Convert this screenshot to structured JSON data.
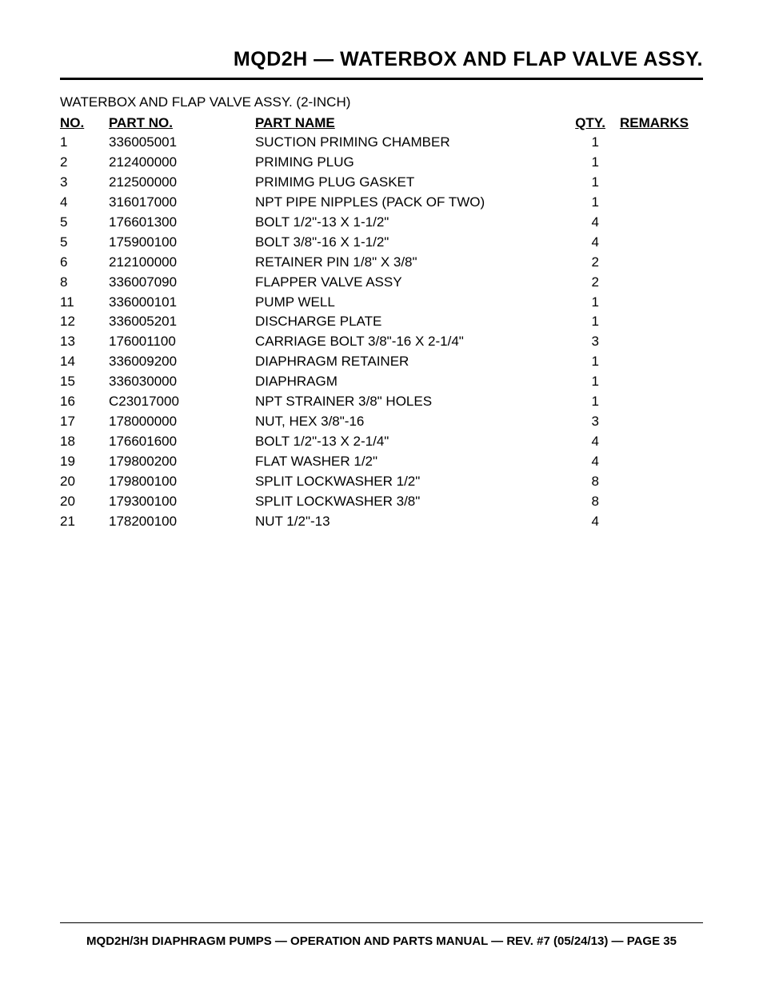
{
  "page_title": "MQD2H — WATERBOX AND FLAP VALVE ASSY.",
  "subtitle": "WATERBOX AND FLAP VALVE ASSY. (2-INCH)",
  "headers": {
    "no": "NO.",
    "partno": "PART NO.",
    "partname": "PART NAME",
    "qty": "QTY.",
    "remarks": "REMARKS"
  },
  "rows": [
    {
      "no": "1",
      "partno": "336005001",
      "partname": "SUCTION PRIMING CHAMBER",
      "qty": "1",
      "remarks": ""
    },
    {
      "no": "2",
      "partno": "212400000",
      "partname": "PRIMING PLUG",
      "qty": "1",
      "remarks": ""
    },
    {
      "no": "3",
      "partno": "212500000",
      "partname": "PRIMIMG PLUG GASKET",
      "qty": "1",
      "remarks": ""
    },
    {
      "no": "4",
      "partno": "316017000",
      "partname": "NPT PIPE NIPPLES (PACK OF TWO)",
      "qty": "1",
      "remarks": ""
    },
    {
      "no": "5",
      "partno": "176601300",
      "partname": "BOLT 1/2\"-13 X 1-1/2\"",
      "qty": "4",
      "remarks": ""
    },
    {
      "no": "5",
      "partno": "175900100",
      "partname": "BOLT 3/8\"-16 X 1-1/2\"",
      "qty": "4",
      "remarks": ""
    },
    {
      "no": "6",
      "partno": "212100000",
      "partname": "RETAINER PIN 1/8\" X 3/8\"",
      "qty": "2",
      "remarks": ""
    },
    {
      "no": "8",
      "partno": "336007090",
      "partname": "FLAPPER VALVE ASSY",
      "qty": "2",
      "remarks": ""
    },
    {
      "no": "11",
      "partno": "336000101",
      "partname": "PUMP WELL",
      "qty": "1",
      "remarks": ""
    },
    {
      "no": "12",
      "partno": "336005201",
      "partname": "DISCHARGE PLATE",
      "qty": "1",
      "remarks": ""
    },
    {
      "no": "13",
      "partno": "176001100",
      "partname": "CARRIAGE BOLT 3/8\"-16 X 2-1/4\"",
      "qty": "3",
      "remarks": ""
    },
    {
      "no": "14",
      "partno": "336009200",
      "partname": "DIAPHRAGM RETAINER",
      "qty": "1",
      "remarks": ""
    },
    {
      "no": "15",
      "partno": "336030000",
      "partname": "DIAPHRAGM",
      "qty": "1",
      "remarks": ""
    },
    {
      "no": "16",
      "partno": "C23017000",
      "partname": "NPT STRAINER 3/8\" HOLES",
      "qty": "1",
      "remarks": ""
    },
    {
      "no": "17",
      "partno": "178000000",
      "partname": "NUT, HEX 3/8\"-16",
      "qty": "3",
      "remarks": ""
    },
    {
      "no": "18",
      "partno": "176601600",
      "partname": "BOLT 1/2\"-13 X 2-1/4\"",
      "qty": "4",
      "remarks": ""
    },
    {
      "no": "19",
      "partno": "179800200",
      "partname": "FLAT WASHER 1/2\"",
      "qty": "4",
      "remarks": ""
    },
    {
      "no": "20",
      "partno": "179800100",
      "partname": "SPLIT LOCKWASHER 1/2\"",
      "qty": "8",
      "remarks": ""
    },
    {
      "no": "20",
      "partno": "179300100",
      "partname": "SPLIT LOCKWASHER 3/8\"",
      "qty": "8",
      "remarks": ""
    },
    {
      "no": "21",
      "partno": "178200100",
      "partname": "NUT 1/2\"-13",
      "qty": "4",
      "remarks": ""
    }
  ],
  "footer": "MQD2H/3H DIAPHRAGM PUMPS — OPERATION AND PARTS MANUAL — REV. #7 (05/24/13) — PAGE 35"
}
